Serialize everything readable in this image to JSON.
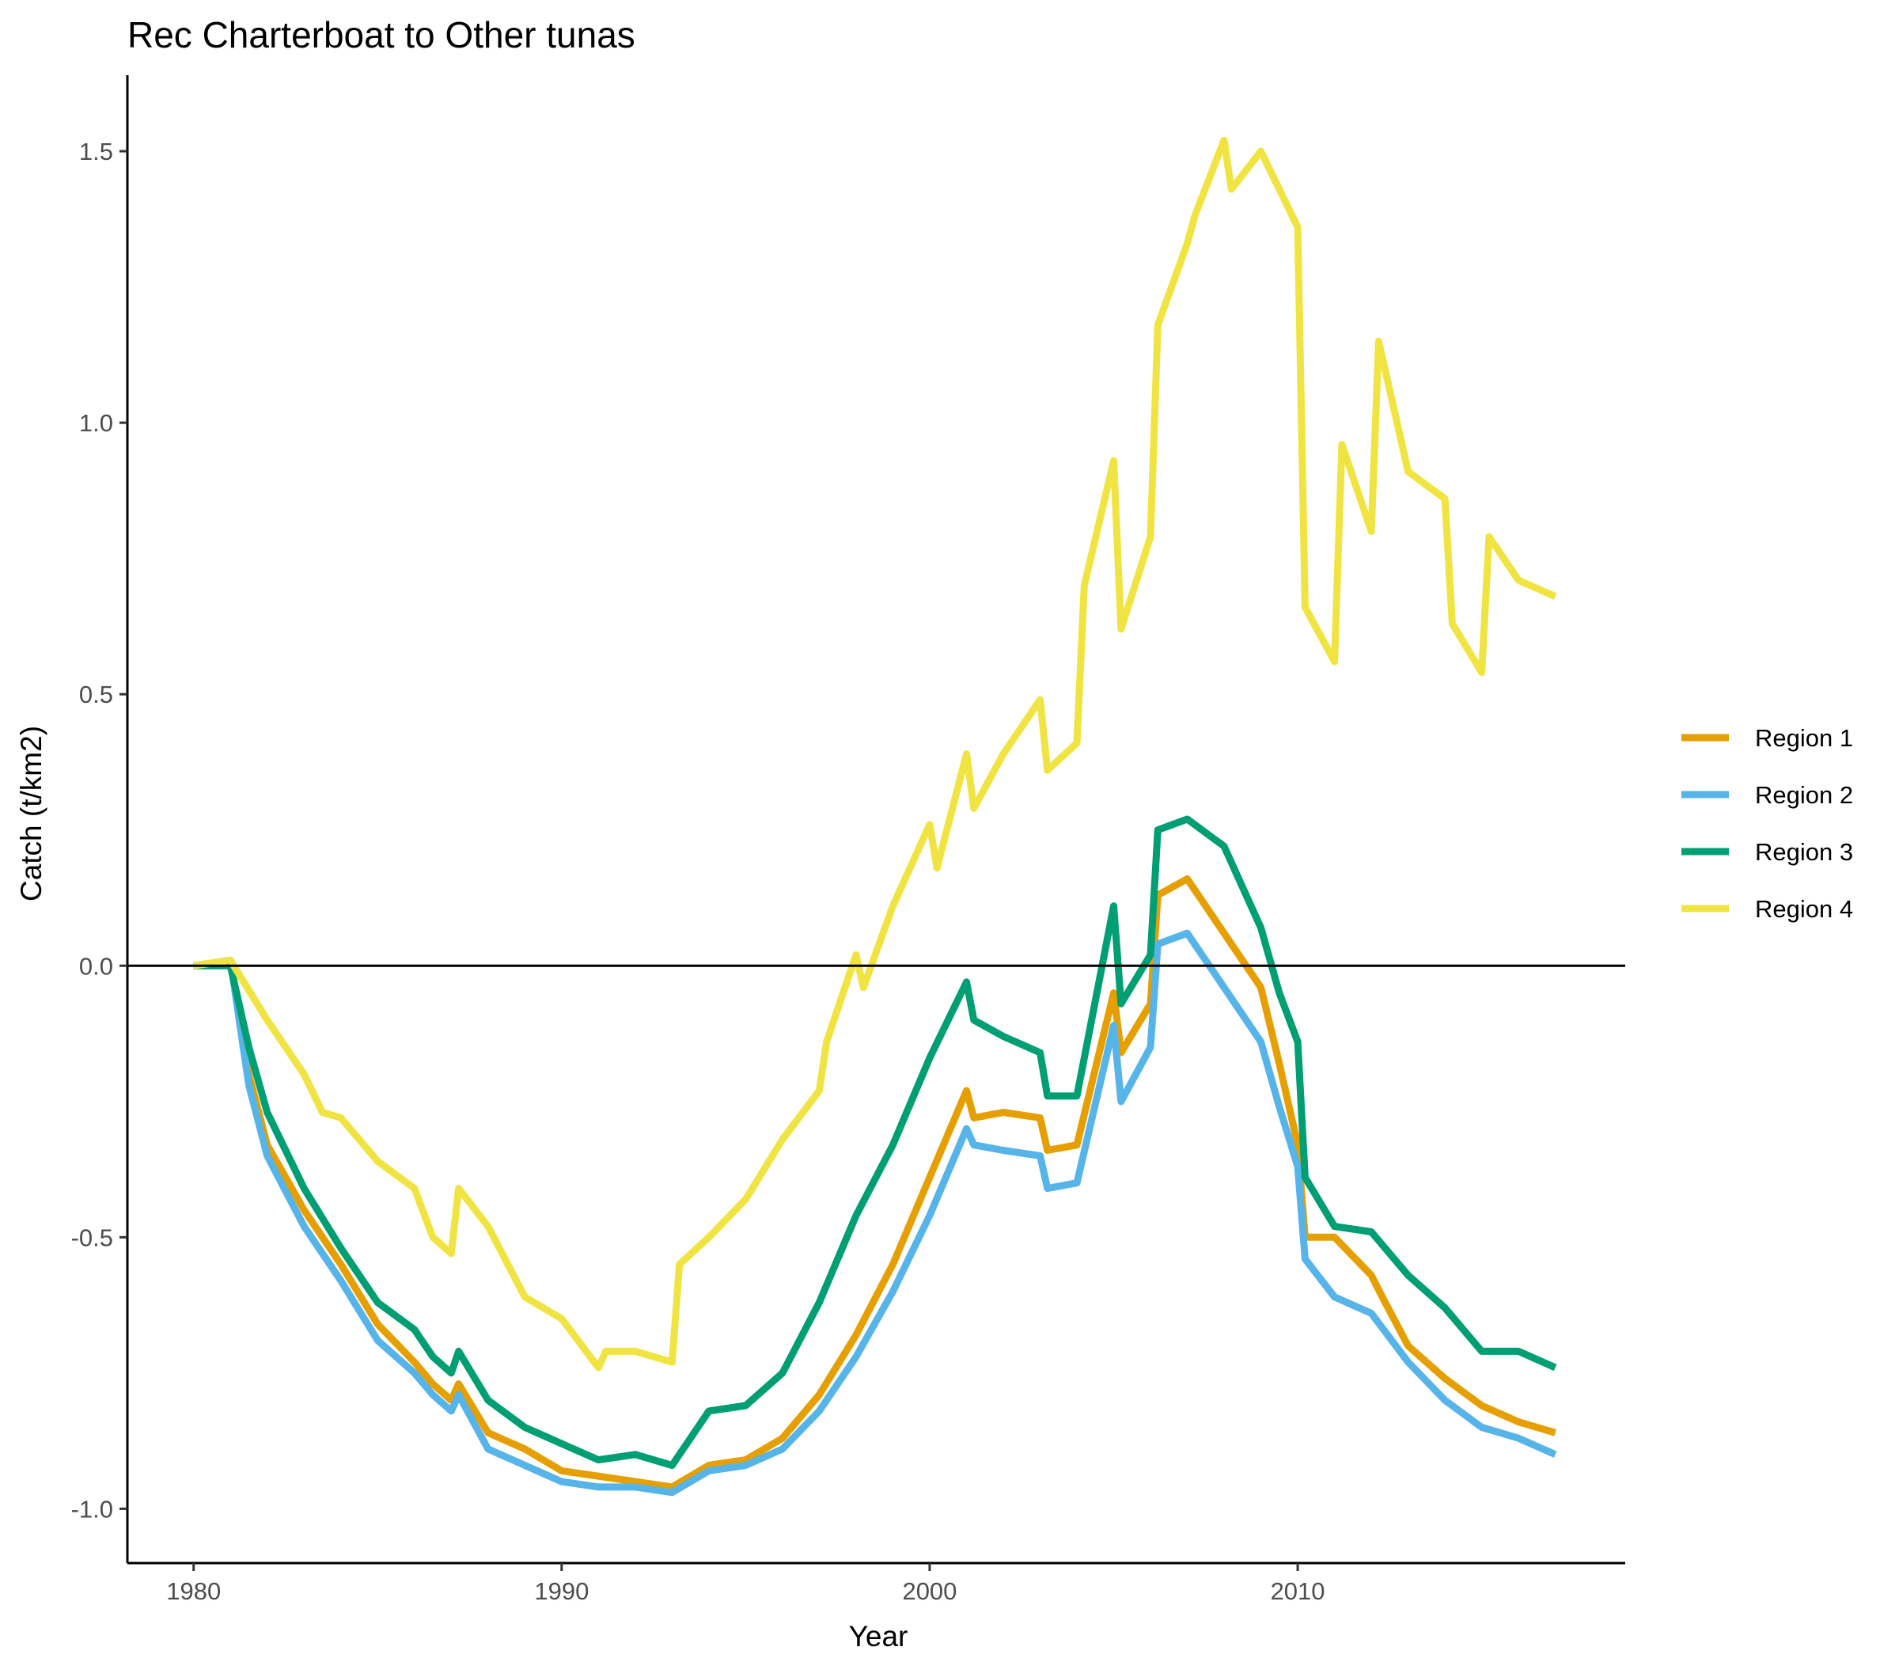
{
  "chart_data": {
    "type": "line",
    "title": "Rec Charterboat to Other tunas",
    "xlabel": "Year",
    "ylabel": "Catch (t/km2)",
    "xlim": [
      1978.2,
      2018.9
    ],
    "ylim": [
      -1.1,
      1.64
    ],
    "xticks": [
      1980,
      1990,
      2000,
      2010
    ],
    "yticks": [
      -1.0,
      -0.5,
      0.0,
      0.5,
      1.0,
      1.5
    ],
    "ytick_labels": [
      "-1.0",
      "-0.5",
      "0.0",
      "0.5",
      "1.0",
      "1.5"
    ],
    "zero_line": true,
    "grid": false,
    "legend_position": "right",
    "series": [
      {
        "name": "Region 1",
        "color": "#E69F00",
        "points": [
          [
            1980,
            0.0
          ],
          [
            1981,
            0.01
          ],
          [
            1981.5,
            -0.2
          ],
          [
            1982,
            -0.33
          ],
          [
            1983,
            -0.45
          ],
          [
            1984,
            -0.55
          ],
          [
            1985,
            -0.66
          ],
          [
            1986,
            -0.73
          ],
          [
            1986.5,
            -0.77
          ],
          [
            1987,
            -0.8
          ],
          [
            1987.2,
            -0.77
          ],
          [
            1988,
            -0.86
          ],
          [
            1989,
            -0.89
          ],
          [
            1990,
            -0.93
          ],
          [
            1991,
            -0.94
          ],
          [
            1992,
            -0.95
          ],
          [
            1993,
            -0.96
          ],
          [
            1994,
            -0.92
          ],
          [
            1995,
            -0.91
          ],
          [
            1996,
            -0.87
          ],
          [
            1997,
            -0.79
          ],
          [
            1998,
            -0.68
          ],
          [
            1999,
            -0.55
          ],
          [
            2000,
            -0.39
          ],
          [
            2001,
            -0.23
          ],
          [
            2001.2,
            -0.28
          ],
          [
            2002,
            -0.27
          ],
          [
            2003,
            -0.28
          ],
          [
            2003.2,
            -0.34
          ],
          [
            2004,
            -0.33
          ],
          [
            2005,
            -0.05
          ],
          [
            2005.2,
            -0.16
          ],
          [
            2006,
            -0.07
          ],
          [
            2006.2,
            0.13
          ],
          [
            2007,
            0.16
          ],
          [
            2008,
            0.06
          ],
          [
            2009,
            -0.04
          ],
          [
            2009.5,
            -0.18
          ],
          [
            2010,
            -0.33
          ],
          [
            2010.2,
            -0.5
          ],
          [
            2011,
            -0.5
          ],
          [
            2012,
            -0.57
          ],
          [
            2012.3,
            -0.61
          ],
          [
            2013,
            -0.7
          ],
          [
            2014,
            -0.76
          ],
          [
            2015,
            -0.81
          ],
          [
            2016,
            -0.84
          ],
          [
            2017,
            -0.86
          ]
        ]
      },
      {
        "name": "Region 2",
        "color": "#56B4E9",
        "points": [
          [
            1980,
            0.0
          ],
          [
            1981,
            0.01
          ],
          [
            1981.5,
            -0.22
          ],
          [
            1982,
            -0.35
          ],
          [
            1983,
            -0.48
          ],
          [
            1984,
            -0.58
          ],
          [
            1985,
            -0.69
          ],
          [
            1986,
            -0.75
          ],
          [
            1986.5,
            -0.79
          ],
          [
            1987,
            -0.82
          ],
          [
            1987.2,
            -0.79
          ],
          [
            1988,
            -0.89
          ],
          [
            1989,
            -0.92
          ],
          [
            1990,
            -0.95
          ],
          [
            1991,
            -0.96
          ],
          [
            1992,
            -0.96
          ],
          [
            1993,
            -0.97
          ],
          [
            1994,
            -0.93
          ],
          [
            1995,
            -0.92
          ],
          [
            1996,
            -0.89
          ],
          [
            1997,
            -0.82
          ],
          [
            1998,
            -0.72
          ],
          [
            1999,
            -0.6
          ],
          [
            2000,
            -0.46
          ],
          [
            2001,
            -0.3
          ],
          [
            2001.2,
            -0.33
          ],
          [
            2002,
            -0.34
          ],
          [
            2003,
            -0.35
          ],
          [
            2003.2,
            -0.41
          ],
          [
            2004,
            -0.4
          ],
          [
            2005,
            -0.11
          ],
          [
            2005.2,
            -0.25
          ],
          [
            2006,
            -0.15
          ],
          [
            2006.2,
            0.04
          ],
          [
            2007,
            0.06
          ],
          [
            2008,
            -0.04
          ],
          [
            2009,
            -0.14
          ],
          [
            2009.5,
            -0.26
          ],
          [
            2010,
            -0.37
          ],
          [
            2010.2,
            -0.54
          ],
          [
            2011,
            -0.61
          ],
          [
            2012,
            -0.64
          ],
          [
            2013,
            -0.73
          ],
          [
            2014,
            -0.8
          ],
          [
            2015,
            -0.85
          ],
          [
            2016,
            -0.87
          ],
          [
            2017,
            -0.9
          ]
        ]
      },
      {
        "name": "Region 3",
        "color": "#009E73",
        "points": [
          [
            1980,
            0.0
          ],
          [
            1981,
            0.0
          ],
          [
            1981.5,
            -0.15
          ],
          [
            1982,
            -0.27
          ],
          [
            1983,
            -0.41
          ],
          [
            1984,
            -0.52
          ],
          [
            1985,
            -0.62
          ],
          [
            1986,
            -0.67
          ],
          [
            1986.5,
            -0.72
          ],
          [
            1987,
            -0.75
          ],
          [
            1987.2,
            -0.71
          ],
          [
            1988,
            -0.8
          ],
          [
            1989,
            -0.85
          ],
          [
            1990,
            -0.88
          ],
          [
            1991,
            -0.91
          ],
          [
            1992,
            -0.9
          ],
          [
            1993,
            -0.92
          ],
          [
            1994,
            -0.82
          ],
          [
            1995,
            -0.81
          ],
          [
            1996,
            -0.75
          ],
          [
            1997,
            -0.62
          ],
          [
            1998,
            -0.46
          ],
          [
            1999,
            -0.33
          ],
          [
            2000,
            -0.17
          ],
          [
            2001,
            -0.03
          ],
          [
            2001.2,
            -0.1
          ],
          [
            2002,
            -0.13
          ],
          [
            2003,
            -0.16
          ],
          [
            2003.2,
            -0.24
          ],
          [
            2004,
            -0.24
          ],
          [
            2005,
            0.11
          ],
          [
            2005.2,
            -0.07
          ],
          [
            2006,
            0.02
          ],
          [
            2006.2,
            0.25
          ],
          [
            2007,
            0.27
          ],
          [
            2008,
            0.22
          ],
          [
            2009,
            0.07
          ],
          [
            2009.5,
            -0.05
          ],
          [
            2010,
            -0.14
          ],
          [
            2010.2,
            -0.39
          ],
          [
            2011,
            -0.48
          ],
          [
            2012,
            -0.49
          ],
          [
            2013,
            -0.57
          ],
          [
            2014,
            -0.63
          ],
          [
            2015,
            -0.71
          ],
          [
            2016,
            -0.71
          ],
          [
            2017,
            -0.74
          ]
        ]
      },
      {
        "name": "Region 4",
        "color": "#F0E442",
        "points": [
          [
            1980,
            0.0
          ],
          [
            1981,
            0.01
          ],
          [
            1982,
            -0.1
          ],
          [
            1983,
            -0.2
          ],
          [
            1983.5,
            -0.27
          ],
          [
            1984,
            -0.28
          ],
          [
            1985,
            -0.36
          ],
          [
            1986,
            -0.41
          ],
          [
            1986.5,
            -0.5
          ],
          [
            1987,
            -0.53
          ],
          [
            1987.2,
            -0.41
          ],
          [
            1988,
            -0.48
          ],
          [
            1989,
            -0.61
          ],
          [
            1990,
            -0.65
          ],
          [
            1991,
            -0.74
          ],
          [
            1991.2,
            -0.71
          ],
          [
            1992,
            -0.71
          ],
          [
            1993,
            -0.73
          ],
          [
            1993.2,
            -0.55
          ],
          [
            1994,
            -0.5
          ],
          [
            1995,
            -0.43
          ],
          [
            1996,
            -0.32
          ],
          [
            1997,
            -0.23
          ],
          [
            1997.2,
            -0.14
          ],
          [
            1998,
            0.02
          ],
          [
            1998.2,
            -0.04
          ],
          [
            1999,
            0.11
          ],
          [
            2000,
            0.26
          ],
          [
            2000.2,
            0.18
          ],
          [
            2001,
            0.39
          ],
          [
            2001.2,
            0.29
          ],
          [
            2002,
            0.39
          ],
          [
            2003,
            0.49
          ],
          [
            2003.2,
            0.36
          ],
          [
            2004,
            0.41
          ],
          [
            2004.2,
            0.7
          ],
          [
            2005,
            0.93
          ],
          [
            2005.2,
            0.62
          ],
          [
            2006,
            0.79
          ],
          [
            2006.2,
            1.18
          ],
          [
            2007,
            1.33
          ],
          [
            2007.2,
            1.38
          ],
          [
            2008,
            1.52
          ],
          [
            2008.2,
            1.43
          ],
          [
            2009,
            1.5
          ],
          [
            2010,
            1.36
          ],
          [
            2010.2,
            0.66
          ],
          [
            2011,
            0.56
          ],
          [
            2011.2,
            0.96
          ],
          [
            2012,
            0.8
          ],
          [
            2012.2,
            1.15
          ],
          [
            2013,
            0.91
          ],
          [
            2014,
            0.86
          ],
          [
            2014.2,
            0.63
          ],
          [
            2015,
            0.54
          ],
          [
            2015.2,
            0.79
          ],
          [
            2016,
            0.71
          ],
          [
            2017,
            0.68
          ]
        ]
      }
    ]
  }
}
